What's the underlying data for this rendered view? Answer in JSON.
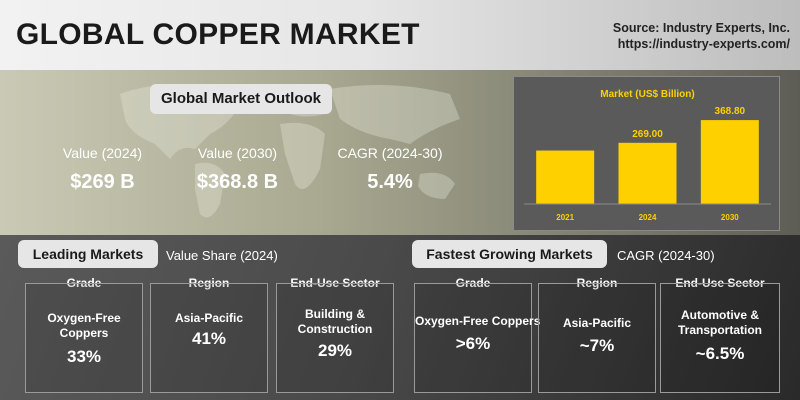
{
  "header": {
    "title": "GLOBAL COPPER MARKET",
    "source_line1": "Source: Industry Experts, Inc.",
    "source_line2": "https://industry-experts.com/"
  },
  "outlook": {
    "label": "Global Market Outlook",
    "kpis": [
      {
        "label": "Value (2024)",
        "value": "$269 B"
      },
      {
        "label": "Value (2030)",
        "value": "$368.8 B"
      },
      {
        "label": "CAGR (2024-30)",
        "value": "5.4%"
      }
    ]
  },
  "chart_data": {
    "type": "bar",
    "title": "Market (US$ Billion)",
    "categories": [
      "2021",
      "2024",
      "2030"
    ],
    "values": [
      null,
      269.0,
      368.8
    ],
    "data_labels": [
      "",
      "269.00",
      "368.80"
    ],
    "ylim": [
      0,
      400
    ],
    "grid": false,
    "colors": {
      "bar": "#ffd000",
      "title": "#ffd000",
      "panel": "#5a5a5a"
    }
  },
  "leading": {
    "label": "Leading Markets",
    "subtitle": "Value Share (2024)",
    "columns": [
      {
        "header": "Grade",
        "name": "Oxygen-Free Coppers",
        "value": "33%"
      },
      {
        "header": "Region",
        "name": "Asia-Pacific",
        "value": "41%"
      },
      {
        "header": "End-Use Sector",
        "name": "Building & Construction",
        "value": "29%"
      }
    ]
  },
  "fastest": {
    "label": "Fastest Growing Markets",
    "subtitle": "CAGR (2024-30)",
    "columns": [
      {
        "header": "Grade",
        "name": "Oxygen-Free Coppers",
        "value": ">6%"
      },
      {
        "header": "Region",
        "name": "Asia-Pacific",
        "value": "~7%"
      },
      {
        "header": "End-Use Sector",
        "name": "Automotive & Transportation",
        "value": "~6.5%"
      }
    ]
  }
}
